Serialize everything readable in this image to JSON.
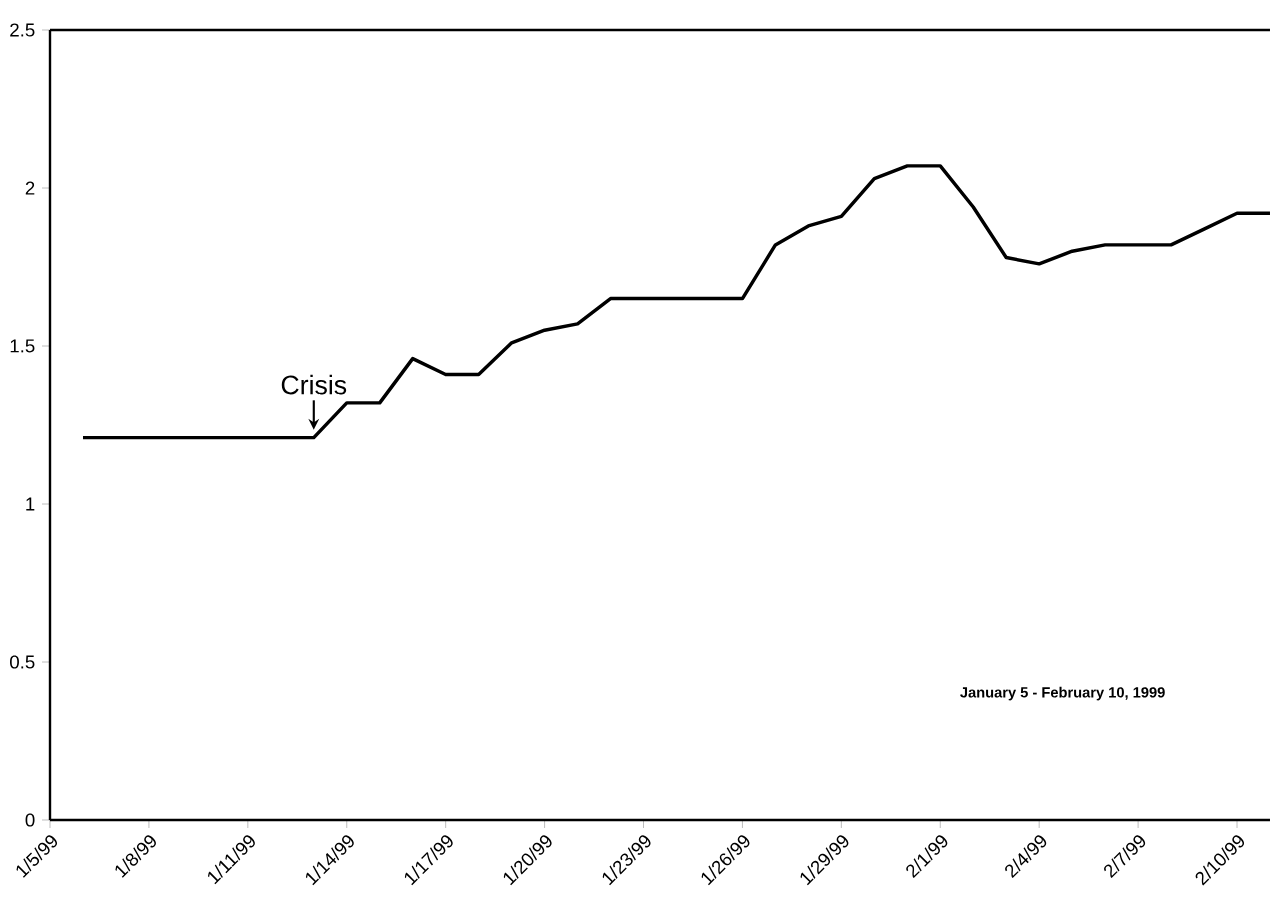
{
  "chart_data": {
    "type": "line",
    "x": [
      "1999-01-06",
      "1999-01-13",
      "1999-01-14",
      "1999-01-15",
      "1999-01-16",
      "1999-01-17",
      "1999-01-18",
      "1999-01-19",
      "1999-01-20",
      "1999-01-21",
      "1999-01-22",
      "1999-01-26",
      "1999-01-27",
      "1999-01-28",
      "1999-01-29",
      "1999-01-30",
      "1999-01-31",
      "1999-02-01",
      "1999-02-02",
      "1999-02-03",
      "1999-02-04",
      "1999-02-05",
      "1999-02-06",
      "1999-02-08",
      "1999-02-09",
      "1999-02-10",
      "1999-02-11"
    ],
    "series": [
      {
        "color": "#000000",
        "values": [
          1.21,
          1.21,
          1.32,
          1.32,
          1.46,
          1.41,
          1.41,
          1.51,
          1.55,
          1.57,
          1.65,
          1.65,
          1.82,
          1.88,
          1.91,
          2.03,
          2.07,
          2.07,
          1.94,
          1.78,
          1.76,
          1.8,
          1.82,
          1.82,
          1.87,
          1.92,
          1.92
        ]
      }
    ],
    "xlim": [
      "1999-01-05",
      "1999-02-11"
    ],
    "xticks": [
      {
        "value": "1999-01-05",
        "label": "1/5/99"
      },
      {
        "value": "1999-01-08",
        "label": "1/8/99"
      },
      {
        "value": "1999-01-11",
        "label": "1/11/99"
      },
      {
        "value": "1999-01-14",
        "label": "1/14/99"
      },
      {
        "value": "1999-01-17",
        "label": "1/17/99"
      },
      {
        "value": "1999-01-20",
        "label": "1/20/99"
      },
      {
        "value": "1999-01-23",
        "label": "1/23/99"
      },
      {
        "value": "1999-01-26",
        "label": "1/26/99"
      },
      {
        "value": "1999-01-29",
        "label": "1/29/99"
      },
      {
        "value": "1999-02-01",
        "label": "2/1/99"
      },
      {
        "value": "1999-02-04",
        "label": "2/4/99"
      },
      {
        "value": "1999-02-07",
        "label": "2/7/99"
      },
      {
        "value": "1999-02-10",
        "label": "2/10/99"
      }
    ],
    "ylim": [
      0,
      2.5
    ],
    "yticks": [
      0,
      0.5,
      1,
      1.5,
      2,
      2.5
    ],
    "grid": false,
    "marker": "none",
    "line_style": "solid",
    "annotations": [
      {
        "text": "Crisis",
        "x": "1999-01-13",
        "y": 1.21
      },
      "January 5 - February 10, 1999"
    ]
  }
}
